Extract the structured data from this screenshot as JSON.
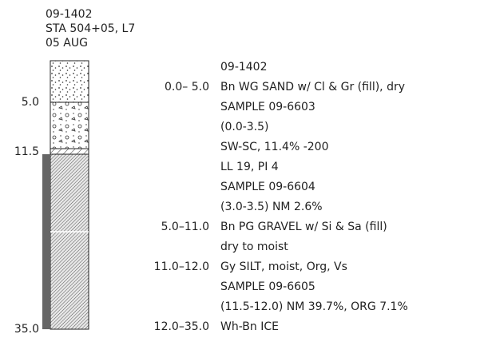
{
  "header": {
    "lines": [
      "09-1402",
      "STA 504+05, L7",
      "05 AUG"
    ]
  },
  "column": {
    "depth_labels": [
      "5.0",
      "11.5",
      "35.0"
    ]
  },
  "log": {
    "rows": [
      {
        "text": "09-1402"
      },
      {
        "range": "0.0– 5.0",
        "text": "Bn WG SAND w/ Cl & Gr (fill), dry"
      },
      {
        "text": "SAMPLE 09-6603"
      },
      {
        "text": "(0.0-3.5)"
      },
      {
        "text": "SW-SC, 11.4% -200"
      },
      {
        "text": "LL 19, PI 4"
      },
      {
        "text": "SAMPLE 09-6604"
      },
      {
        "text": "(3.0-3.5) NM 2.6%"
      },
      {
        "range": "5.0–11.0",
        "text": "Bn PG GRAVEL w/ Si & Sa (fill)"
      },
      {
        "text": "dry to moist"
      },
      {
        "range": "11.0–12.0",
        "text": "Gy SILT, moist, Org, Vs"
      },
      {
        "text": "SAMPLE 09-6605"
      },
      {
        "text": "(11.5-12.0) NM 39.7%, ORG 7.1%"
      },
      {
        "range": "12.0–35.0",
        "text": "Wh-Bn  ICE"
      }
    ]
  }
}
